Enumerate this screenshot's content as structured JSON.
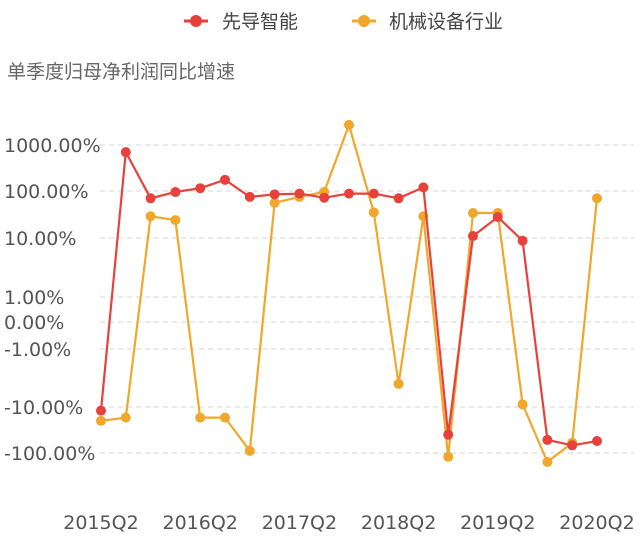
{
  "chart_data": {
    "type": "line",
    "title": "单季度归母净利润同比增速",
    "y_scale": "symlog",
    "grid": true,
    "legend_position": "top-center",
    "y_ticks": [
      {
        "value": 1000,
        "label": "1000.00%"
      },
      {
        "value": 100,
        "label": "100.00%"
      },
      {
        "value": 10,
        "label": "10.00%"
      },
      {
        "value": 1,
        "label": "1.00%"
      },
      {
        "value": 0,
        "label": "0.00%"
      },
      {
        "value": -1,
        "label": "-1.00%"
      },
      {
        "value": -10,
        "label": "-10.00%"
      },
      {
        "value": -100,
        "label": "-100.00%"
      }
    ],
    "x_labels": [
      {
        "label": "2015Q2",
        "index": 0
      },
      {
        "label": "2016Q2",
        "index": 4
      },
      {
        "label": "2017Q2",
        "index": 8
      },
      {
        "label": "2018Q2",
        "index": 12
      },
      {
        "label": "2019Q2",
        "index": 16
      },
      {
        "label": "2020Q2",
        "index": 20
      }
    ],
    "series": [
      {
        "name": "先导智能",
        "color": "#e8413c",
        "values": [
          -12,
          700,
          70,
          95,
          115,
          175,
          75,
          85,
          88,
          72,
          88,
          88,
          70,
          120,
          -40,
          11,
          28,
          9,
          -52,
          -68,
          -55
        ]
      },
      {
        "name": "机械设备行业",
        "color": "#f0a72b",
        "values": [
          -20,
          -17,
          29,
          24,
          -17,
          -17,
          -90,
          56,
          75,
          95,
          2800,
          35,
          -4,
          29,
          -125,
          34,
          34,
          -9,
          -170,
          -60,
          70
        ]
      }
    ]
  }
}
